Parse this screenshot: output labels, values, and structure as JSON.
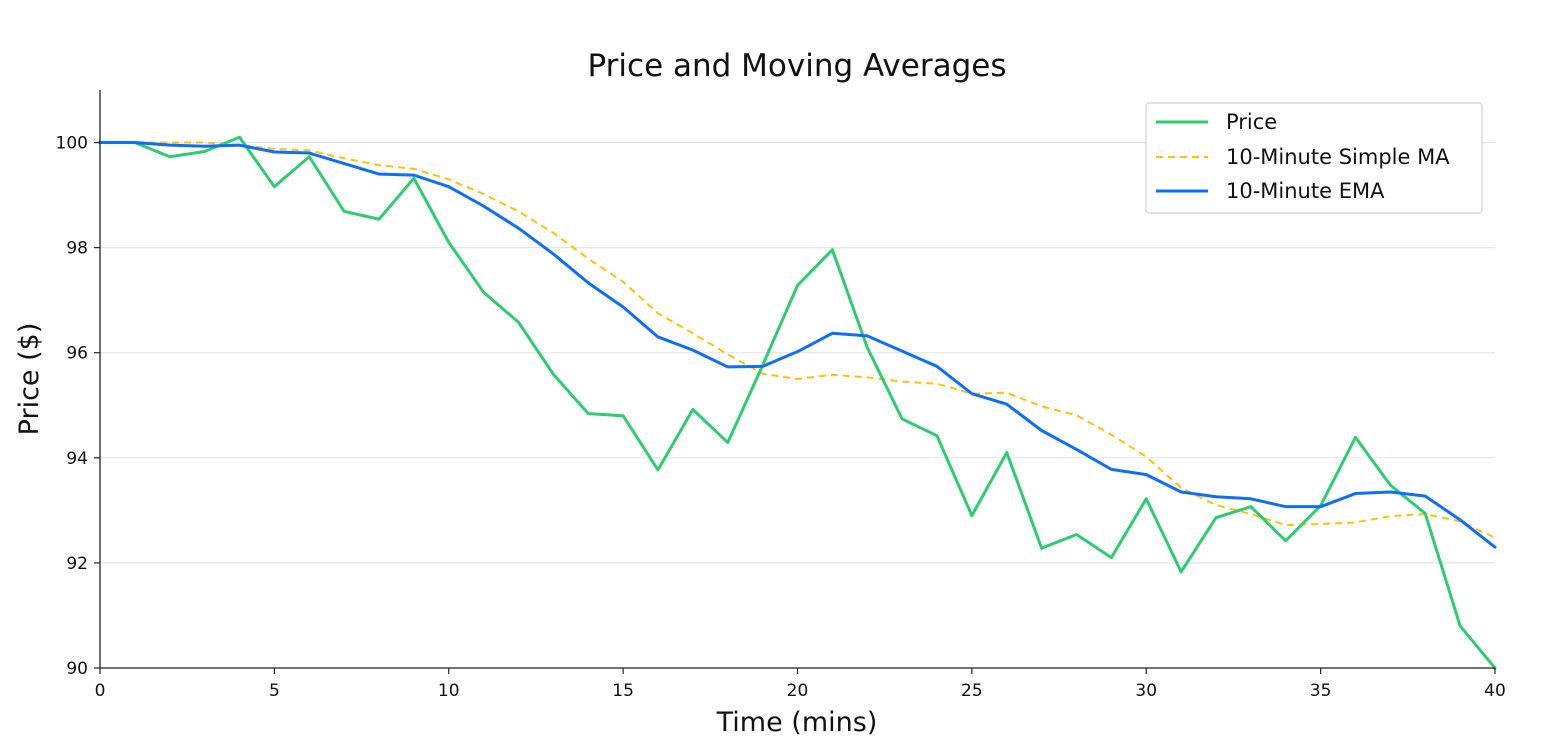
{
  "chart_data": {
    "type": "line",
    "title": "Price and Moving Averages",
    "xlabel": "Time (mins)",
    "ylabel": "Price ($)",
    "xlim": [
      0,
      40
    ],
    "ylim": [
      90,
      101
    ],
    "xticks": [
      0,
      5,
      10,
      15,
      20,
      25,
      30,
      35,
      40
    ],
    "yticks": [
      90,
      92,
      94,
      96,
      98,
      100
    ],
    "grid": "horizontal",
    "legend_position": "top-right",
    "x": [
      0,
      1,
      2,
      3,
      4,
      5,
      6,
      7,
      8,
      9,
      10,
      11,
      12,
      13,
      14,
      15,
      16,
      17,
      18,
      19,
      20,
      21,
      22,
      23,
      24,
      25,
      26,
      27,
      28,
      29,
      30,
      31,
      32,
      33,
      34,
      35,
      36,
      37,
      38,
      39,
      40
    ],
    "series": [
      {
        "name": "Price",
        "color": "#2ecc71",
        "style": "solid",
        "values": [
          100.0,
          100.0,
          99.73,
          99.83,
          100.1,
          99.16,
          99.73,
          98.69,
          98.54,
          99.32,
          98.1,
          97.15,
          96.58,
          95.59,
          94.84,
          94.8,
          93.77,
          94.92,
          94.29,
          95.76,
          97.28,
          97.96,
          96.1,
          94.74,
          94.42,
          92.9,
          94.1,
          92.28,
          92.54,
          92.1,
          93.22,
          91.83,
          92.86,
          93.07,
          92.42,
          93.09,
          94.39,
          93.48,
          92.94,
          90.8,
          90.0
        ]
      },
      {
        "name": "10-Minute Simple MA",
        "color": "#ffc107",
        "style": "dashed",
        "values": [
          100.0,
          100.0,
          100.0,
          100.0,
          99.95,
          99.88,
          99.85,
          99.7,
          99.57,
          99.5,
          99.3,
          99.02,
          98.69,
          98.28,
          97.79,
          97.35,
          96.75,
          96.37,
          95.97,
          95.6,
          95.5,
          95.58,
          95.53,
          95.45,
          95.41,
          95.22,
          95.24,
          94.98,
          94.81,
          94.44,
          94.02,
          93.43,
          93.1,
          92.93,
          92.72,
          92.74,
          92.77,
          92.89,
          92.93,
          92.79,
          92.48
        ]
      },
      {
        "name": "10-Minute EMA",
        "color": "#0d6efd",
        "style": "solid",
        "values": [
          100.0,
          100.0,
          99.95,
          99.93,
          99.95,
          99.82,
          99.8,
          99.6,
          99.4,
          99.38,
          99.16,
          98.79,
          98.37,
          97.88,
          97.33,
          96.87,
          96.3,
          96.05,
          95.73,
          95.74,
          96.02,
          96.37,
          96.32,
          96.03,
          95.74,
          95.22,
          95.02,
          94.52,
          94.16,
          93.78,
          93.68,
          93.35,
          93.26,
          93.22,
          93.07,
          93.07,
          93.32,
          93.35,
          93.27,
          92.82,
          92.3
        ]
      }
    ]
  }
}
